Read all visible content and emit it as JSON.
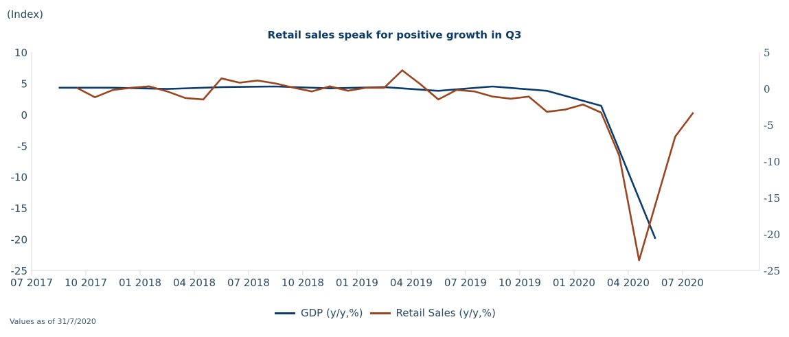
{
  "unit_label": "(Index)",
  "footnote": "Values as of 31/7/2020",
  "chart_data": {
    "type": "line",
    "title": "Retail sales speak for positive growth in Q3",
    "xlabel": "",
    "ylabel": "(Index)",
    "x_ticks": [
      "07 2017",
      "10 2017",
      "01 2018",
      "04 2018",
      "07 2018",
      "10 2018",
      "01 2019",
      "04 2019",
      "07 2019",
      "10 2019",
      "01 2020",
      "04 2020",
      "07 2020"
    ],
    "y_left": {
      "range": [
        -25,
        10
      ],
      "ticks": [
        "10",
        "5",
        "0",
        "-5",
        "-10",
        "-15",
        "-20",
        "-25"
      ]
    },
    "y_right": {
      "range": [
        -25,
        5
      ],
      "ticks": [
        "5",
        "0",
        "-5",
        "-10",
        "-15",
        "-20",
        "-25"
      ]
    },
    "grid": false,
    "legend": "bottom",
    "series": [
      {
        "name": "GDP (y/y,%)",
        "axis": "left",
        "color": "#0c3b6e",
        "x_months": [
          1.5,
          4.5,
          7.5,
          10.5,
          13.5,
          16.5,
          19.5,
          22.5,
          25.5,
          28.5,
          31.5,
          34.5
        ],
        "values": [
          4.3,
          4.3,
          4.1,
          4.4,
          4.5,
          4.2,
          4.4,
          3.8,
          4.5,
          3.8,
          1.4,
          -19.9
        ]
      },
      {
        "name": "Retail Sales (y/y,%)",
        "axis": "right",
        "color": "#9a4520",
        "x_months": [
          2.5,
          3.5,
          4.5,
          5.5,
          6.5,
          7.5,
          8.5,
          9.5,
          10.5,
          11.5,
          12.5,
          13.5,
          14.5,
          15.5,
          16.5,
          17.5,
          18.5,
          19.5,
          20.5,
          21.5,
          22.5,
          23.5,
          24.5,
          25.5,
          26.5,
          27.5,
          28.5,
          29.5,
          30.5,
          31.5,
          32.5,
          33.6,
          35.6,
          36.6
        ],
        "values": [
          0.1,
          -1.2,
          -0.2,
          0.1,
          0.3,
          -0.4,
          -1.3,
          -1.5,
          1.4,
          0.8,
          1.1,
          0.7,
          0.1,
          -0.4,
          0.3,
          -0.3,
          0.1,
          0.1,
          2.5,
          0.6,
          -1.5,
          -0.2,
          -0.4,
          -1.1,
          -1.4,
          -1.1,
          -3.2,
          -2.9,
          -2.2,
          -3.3,
          -9.2,
          -23.6,
          -6.6,
          -3.3
        ]
      }
    ]
  }
}
